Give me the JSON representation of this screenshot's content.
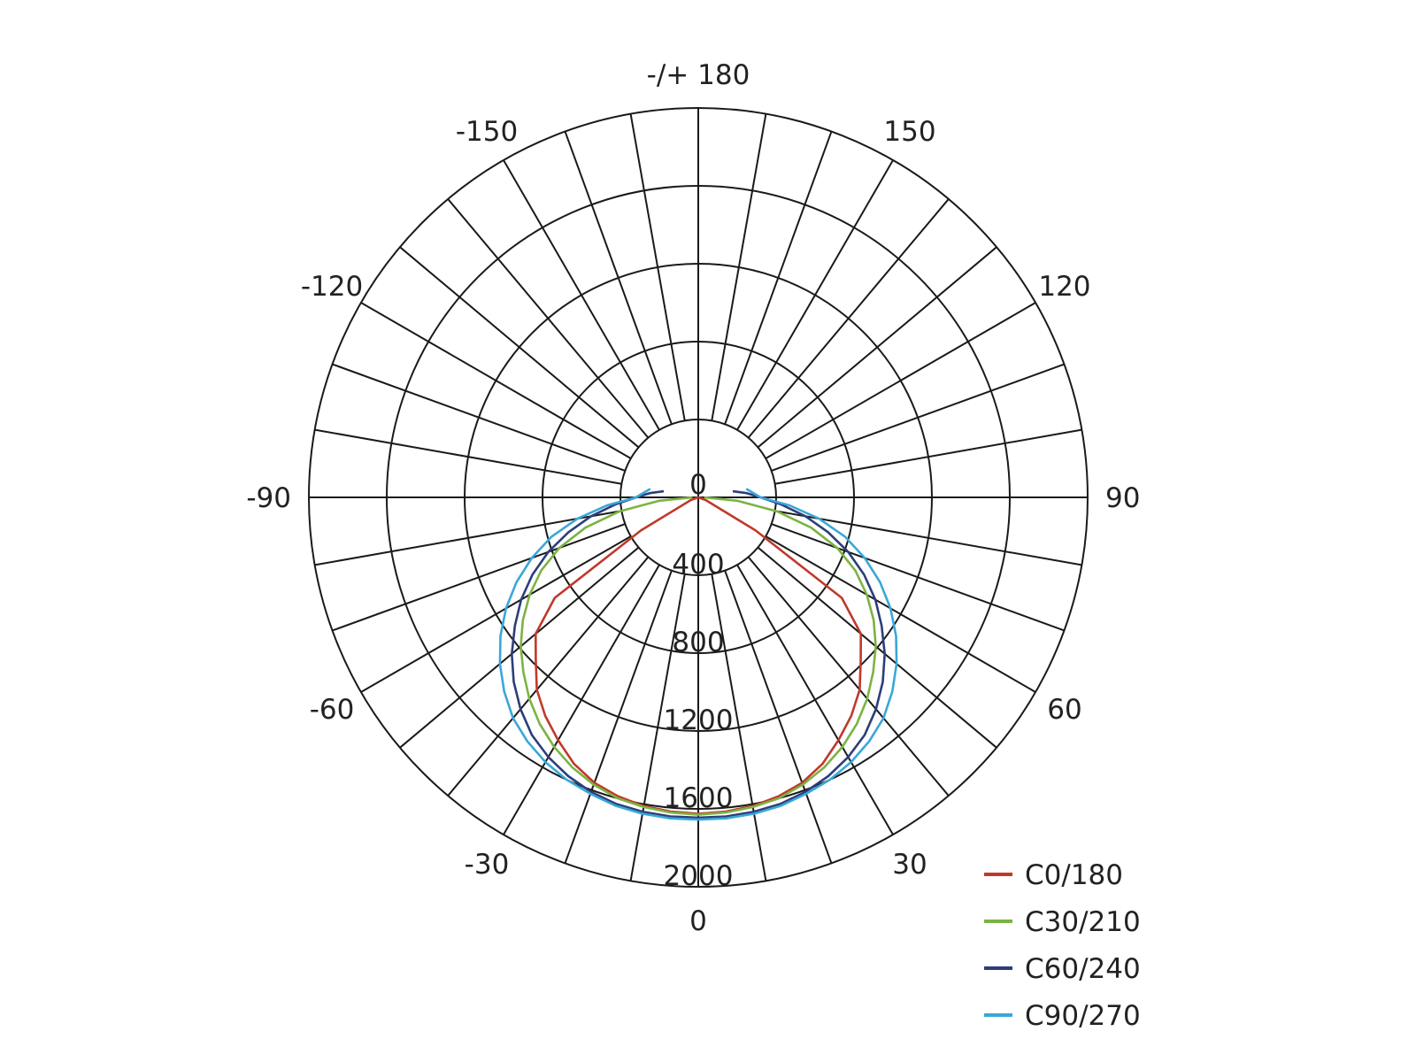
{
  "chart_data": {
    "type": "polar",
    "angular_ticks": [
      "-/+ 180",
      "150",
      "120",
      "90",
      "60",
      "30",
      "0",
      "-30",
      "-60",
      "-90",
      "-120",
      "-150"
    ],
    "angular_tick_values": [
      180,
      150,
      120,
      90,
      60,
      30,
      0,
      -30,
      -60,
      -90,
      -120,
      -150
    ],
    "radial_ticks": [
      "0",
      "400",
      "800",
      "1200",
      "1600",
      "2000"
    ],
    "radial_tick_values": [
      0,
      400,
      800,
      1200,
      1600,
      2000
    ],
    "rmax": 2000,
    "spoke_step_deg": 10,
    "grid": true,
    "legend_position": "bottom-right",
    "series": [
      {
        "name": "C0/180",
        "color": "#c0392b",
        "angles": [
          -90,
          -70,
          -60,
          -55,
          -50,
          -45,
          -40,
          -35,
          -30,
          -25,
          -20,
          -15,
          -10,
          -5,
          0,
          5,
          10,
          15,
          20,
          25,
          30,
          35,
          40,
          45,
          50,
          55,
          60,
          70,
          90
        ],
        "values": [
          0,
          40,
          340,
          900,
          1090,
          1180,
          1290,
          1370,
          1440,
          1510,
          1560,
          1590,
          1610,
          1620,
          1625,
          1620,
          1610,
          1590,
          1560,
          1510,
          1440,
          1370,
          1290,
          1180,
          1090,
          900,
          340,
          40,
          0
        ]
      },
      {
        "name": "C30/210",
        "color": "#7cb342",
        "angles": [
          -90,
          -85,
          -80,
          -75,
          -70,
          -65,
          -60,
          -55,
          -50,
          -45,
          -40,
          -35,
          -30,
          -25,
          -20,
          -15,
          -10,
          -5,
          0,
          5,
          10,
          15,
          20,
          25,
          30,
          35,
          40,
          45,
          50,
          55,
          60,
          65,
          70,
          75,
          80,
          85,
          90
        ],
        "values": [
          30,
          200,
          410,
          600,
          760,
          890,
          1000,
          1100,
          1190,
          1270,
          1350,
          1420,
          1480,
          1530,
          1570,
          1600,
          1615,
          1625,
          1630,
          1625,
          1615,
          1600,
          1570,
          1530,
          1480,
          1420,
          1350,
          1270,
          1190,
          1100,
          1000,
          890,
          760,
          600,
          410,
          200,
          30
        ]
      },
      {
        "name": "C60/240",
        "color": "#2c3e7a",
        "angles": [
          -100,
          -95,
          -90,
          -85,
          -80,
          -75,
          -70,
          -65,
          -60,
          -55,
          -50,
          -45,
          -40,
          -35,
          -30,
          -25,
          -20,
          -15,
          -10,
          -5,
          0,
          5,
          10,
          15,
          20,
          25,
          30,
          35,
          40,
          45,
          50,
          55,
          60,
          65,
          70,
          75,
          80,
          85,
          90,
          95,
          100
        ],
        "values": [
          180,
          250,
          320,
          430,
          560,
          690,
          820,
          940,
          1050,
          1150,
          1250,
          1340,
          1420,
          1490,
          1540,
          1580,
          1610,
          1630,
          1640,
          1645,
          1645,
          1645,
          1640,
          1630,
          1610,
          1580,
          1540,
          1490,
          1420,
          1340,
          1250,
          1150,
          1050,
          940,
          820,
          690,
          560,
          430,
          320,
          250,
          180
        ]
      },
      {
        "name": "C90/270",
        "color": "#3aa7d8",
        "angles": [
          -100,
          -95,
          -90,
          -85,
          -80,
          -75,
          -70,
          -65,
          -60,
          -55,
          -50,
          -45,
          -40,
          -35,
          -30,
          -25,
          -20,
          -15,
          -10,
          -5,
          0,
          5,
          10,
          15,
          20,
          25,
          30,
          35,
          40,
          45,
          50,
          55,
          60,
          65,
          70,
          75,
          80,
          85,
          90,
          95,
          100
        ],
        "values": [
          250,
          280,
          320,
          470,
          630,
          780,
          910,
          1030,
          1140,
          1240,
          1330,
          1410,
          1480,
          1530,
          1570,
          1600,
          1620,
          1640,
          1650,
          1655,
          1655,
          1655,
          1650,
          1640,
          1620,
          1600,
          1570,
          1530,
          1480,
          1410,
          1330,
          1240,
          1140,
          1030,
          910,
          780,
          630,
          470,
          320,
          280,
          250
        ]
      }
    ]
  }
}
